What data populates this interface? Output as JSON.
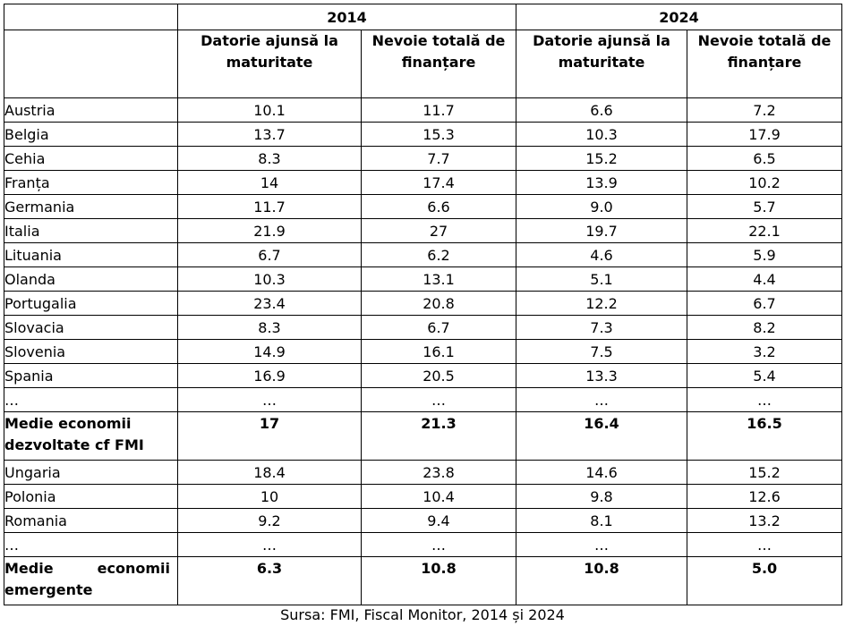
{
  "table": {
    "years": [
      "2014",
      "2024"
    ],
    "subheaders": [
      "Datorie ajunsă la maturitate",
      "Nevoie totală de finanțare",
      "Datorie ajunsă la maturitate",
      "Nevoie totală de finanțare"
    ],
    "rows": [
      {
        "name": "Austria",
        "v": [
          "10.1",
          "11.7",
          "6.6",
          "7.2"
        ]
      },
      {
        "name": "Belgia",
        "v": [
          "13.7",
          "15.3",
          "10.3",
          "17.9"
        ]
      },
      {
        "name": "Cehia",
        "v": [
          "8.3",
          "7.7",
          "15.2",
          "6.5"
        ]
      },
      {
        "name": "Franța",
        "v": [
          "14",
          "17.4",
          "13.9",
          "10.2"
        ]
      },
      {
        "name": "Germania",
        "v": [
          "11.7",
          "6.6",
          "9.0",
          "5.7"
        ]
      },
      {
        "name": "Italia",
        "v": [
          "21.9",
          "27",
          "19.7",
          "22.1"
        ]
      },
      {
        "name": "Lituania",
        "v": [
          "6.7",
          "6.2",
          "4.6",
          "5.9"
        ]
      },
      {
        "name": "Olanda",
        "v": [
          "10.3",
          "13.1",
          "5.1",
          "4.4"
        ]
      },
      {
        "name": "Portugalia",
        "v": [
          "23.4",
          "20.8",
          "12.2",
          "6.7"
        ]
      },
      {
        "name": "Slovacia",
        "v": [
          "8.3",
          "6.7",
          "7.3",
          "8.2"
        ]
      },
      {
        "name": "Slovenia",
        "v": [
          "14.9",
          "16.1",
          "7.5",
          "3.2"
        ]
      },
      {
        "name": "Spania",
        "v": [
          "16.9",
          "20.5",
          "13.3",
          "5.4"
        ]
      },
      {
        "name": "…",
        "v": [
          "…",
          "…",
          "…",
          "…"
        ]
      },
      {
        "name": "Medie economii dezvoltate cf FMI",
        "v": [
          "17",
          "21.3",
          "16.4",
          "16.5"
        ],
        "bold": true
      },
      {
        "name": "Ungaria",
        "v": [
          "18.4",
          "23.8",
          "14.6",
          "15.2"
        ]
      },
      {
        "name": "Polonia",
        "v": [
          "10",
          "10.4",
          "9.8",
          "12.6"
        ]
      },
      {
        "name": "Romania",
        "v": [
          "9.2",
          "9.4",
          "8.1",
          "13.2"
        ]
      },
      {
        "name": "…",
        "v": [
          "…",
          "…",
          "…",
          "…"
        ]
      },
      {
        "name": "Medie economii emergente",
        "v": [
          "6.3",
          "10.8",
          "10.8",
          "5.0"
        ],
        "bold": true
      }
    ]
  },
  "source": "Sursa: FMI, Fiscal Monitor, 2014 și 2024"
}
